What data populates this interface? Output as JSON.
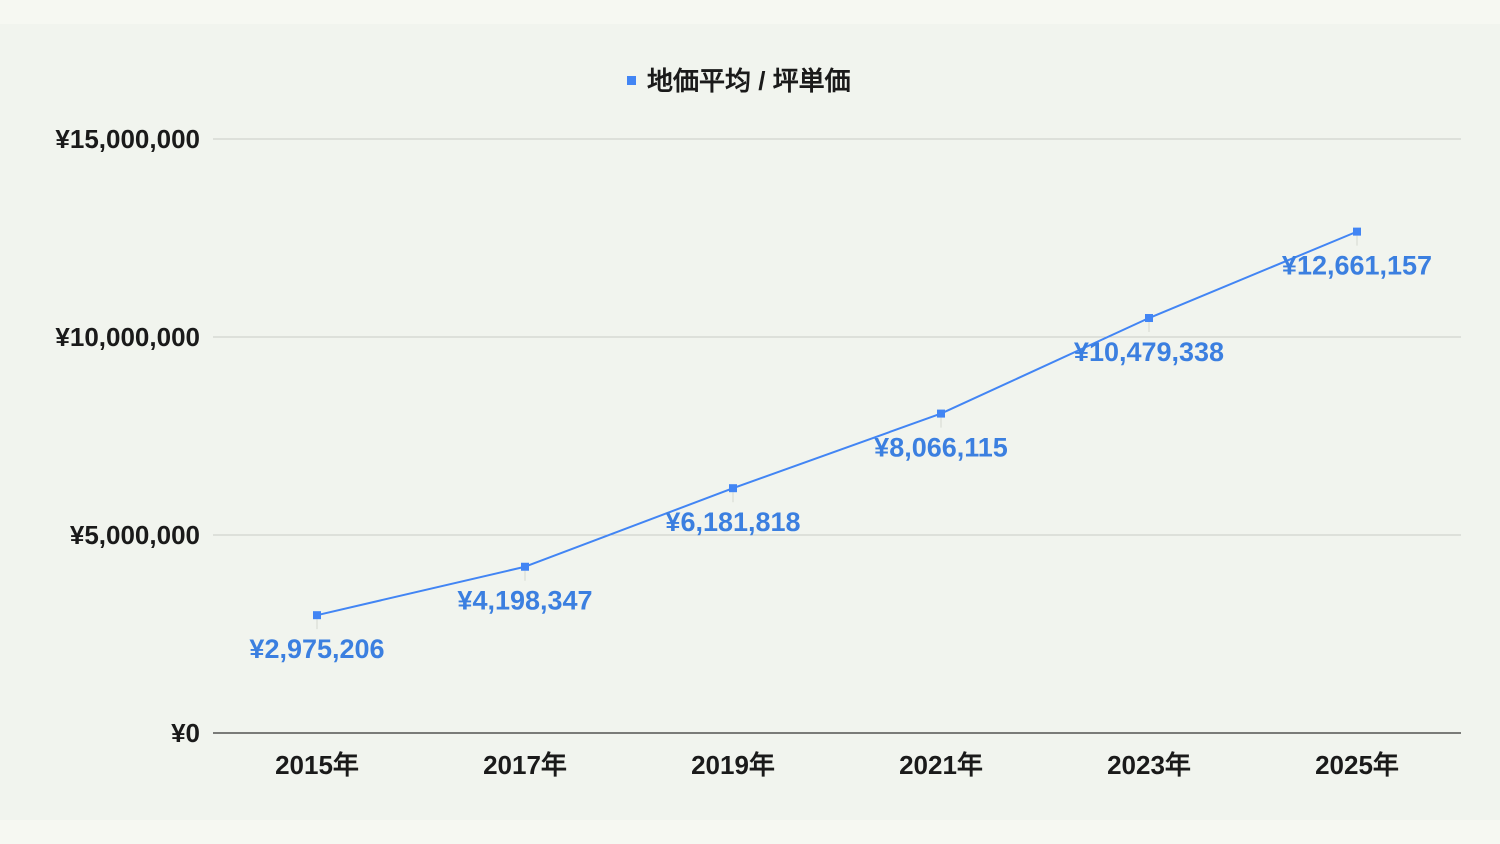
{
  "chart_data": {
    "type": "line",
    "title": "",
    "xlabel": "",
    "ylabel": "",
    "categories": [
      "2015年",
      "2017年",
      "2019年",
      "2021年",
      "2023年",
      "2025年"
    ],
    "series": [
      {
        "name": "地価平均 / 坪単価",
        "values": [
          2975206,
          4198347,
          6181818,
          8066115,
          10479338,
          12661157
        ],
        "labels": [
          "¥2,975,206",
          "¥4,198,347",
          "¥6,181,818",
          "¥8,066,115",
          "¥10,479,338",
          "¥12,661,157"
        ],
        "color": "#4285f4",
        "label_color": "#3b7fe0"
      }
    ],
    "ylim": [
      0,
      15000000
    ],
    "yticks": [
      0,
      5000000,
      10000000,
      15000000
    ],
    "ytick_labels": [
      "¥0",
      "¥5,000,000",
      "¥10,000,000",
      "¥15,000,000"
    ],
    "grid": true,
    "legend_position": "top-center",
    "gridline_color": "#c9ccc6",
    "axis_color": "#333333"
  }
}
